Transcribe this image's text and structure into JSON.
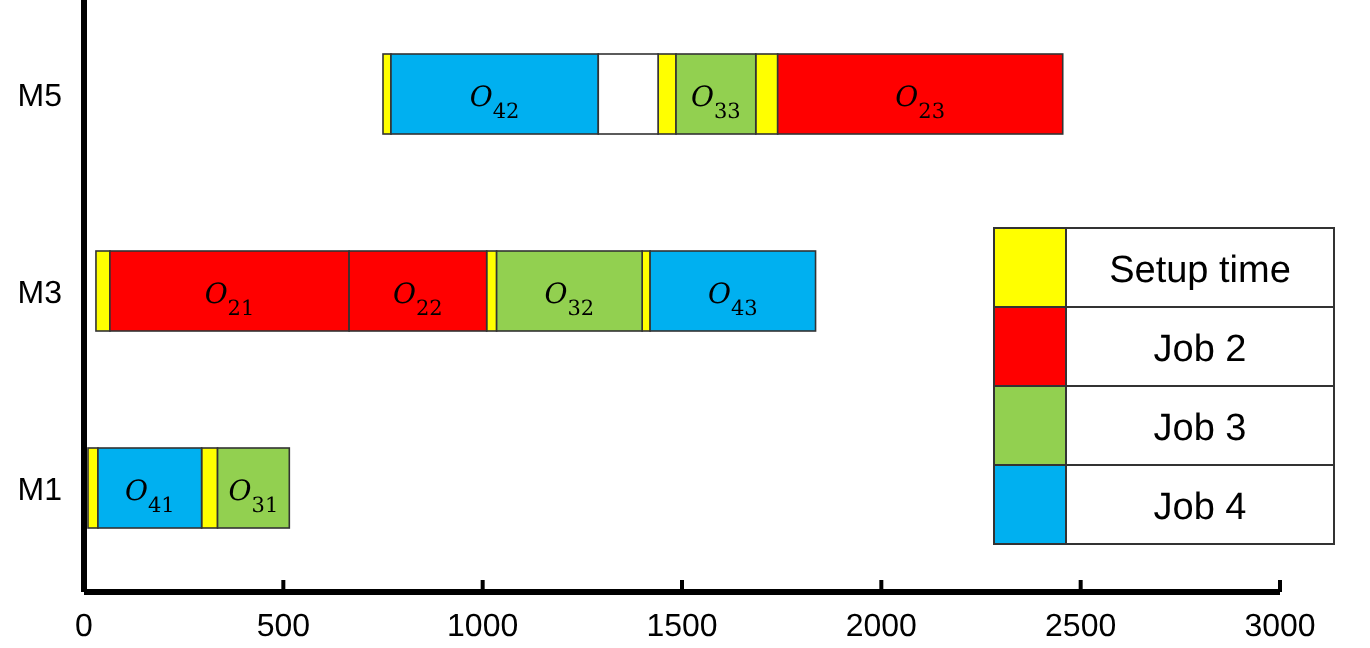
{
  "chart_data": {
    "type": "bar",
    "orientation": "horizontal",
    "categories": [
      "M5",
      "M3",
      "M1"
    ],
    "xlim": [
      0,
      3000
    ],
    "xticks": [
      0,
      500,
      1000,
      1500,
      2000,
      2500,
      3000
    ],
    "grid": false,
    "legend": "right",
    "series": [
      {
        "name": "Setup time",
        "color": "#ffff00",
        "base": [
          750,
          30,
          10
        ],
        "values": [
          20,
          35,
          25
        ]
      },
      {
        "color": "#ffff00",
        "base": [
          1440,
          1010,
          295
        ],
        "values": [
          45,
          25,
          40
        ]
      },
      {
        "color": "#ffff00",
        "base": [
          1685,
          1400,
          null
        ],
        "values": [
          55,
          20,
          null
        ]
      },
      {
        "name": "Job 2",
        "color": "#ff0000",
        "base": [
          1740,
          65,
          null
        ],
        "values": [
          715,
          600,
          null
        ]
      },
      {
        "color": "#ff0000",
        "base": [
          null,
          665,
          null
        ],
        "values": [
          null,
          345,
          null
        ]
      },
      {
        "name": "Job 3",
        "color": "#92d050",
        "base": [
          1485,
          1035,
          335
        ],
        "values": [
          200,
          365,
          180
        ]
      },
      {
        "name": "Job 4",
        "color": "#00b0f0",
        "base": [
          770,
          1420,
          35
        ],
        "values": [
          520,
          415,
          260
        ]
      },
      {
        "color": "#ffffff",
        "base": [
          1290,
          null,
          null
        ],
        "values": [
          150,
          null,
          null
        ]
      }
    ],
    "annotations": [
      "O$_{42}$",
      "O$_{33}$",
      "O$_{23}$",
      "O$_{21}$",
      "O$_{22}$",
      "O$_{32}$",
      "O$_{43}$",
      "O$_{41}$",
      "O$_{31}$"
    ]
  }
}
